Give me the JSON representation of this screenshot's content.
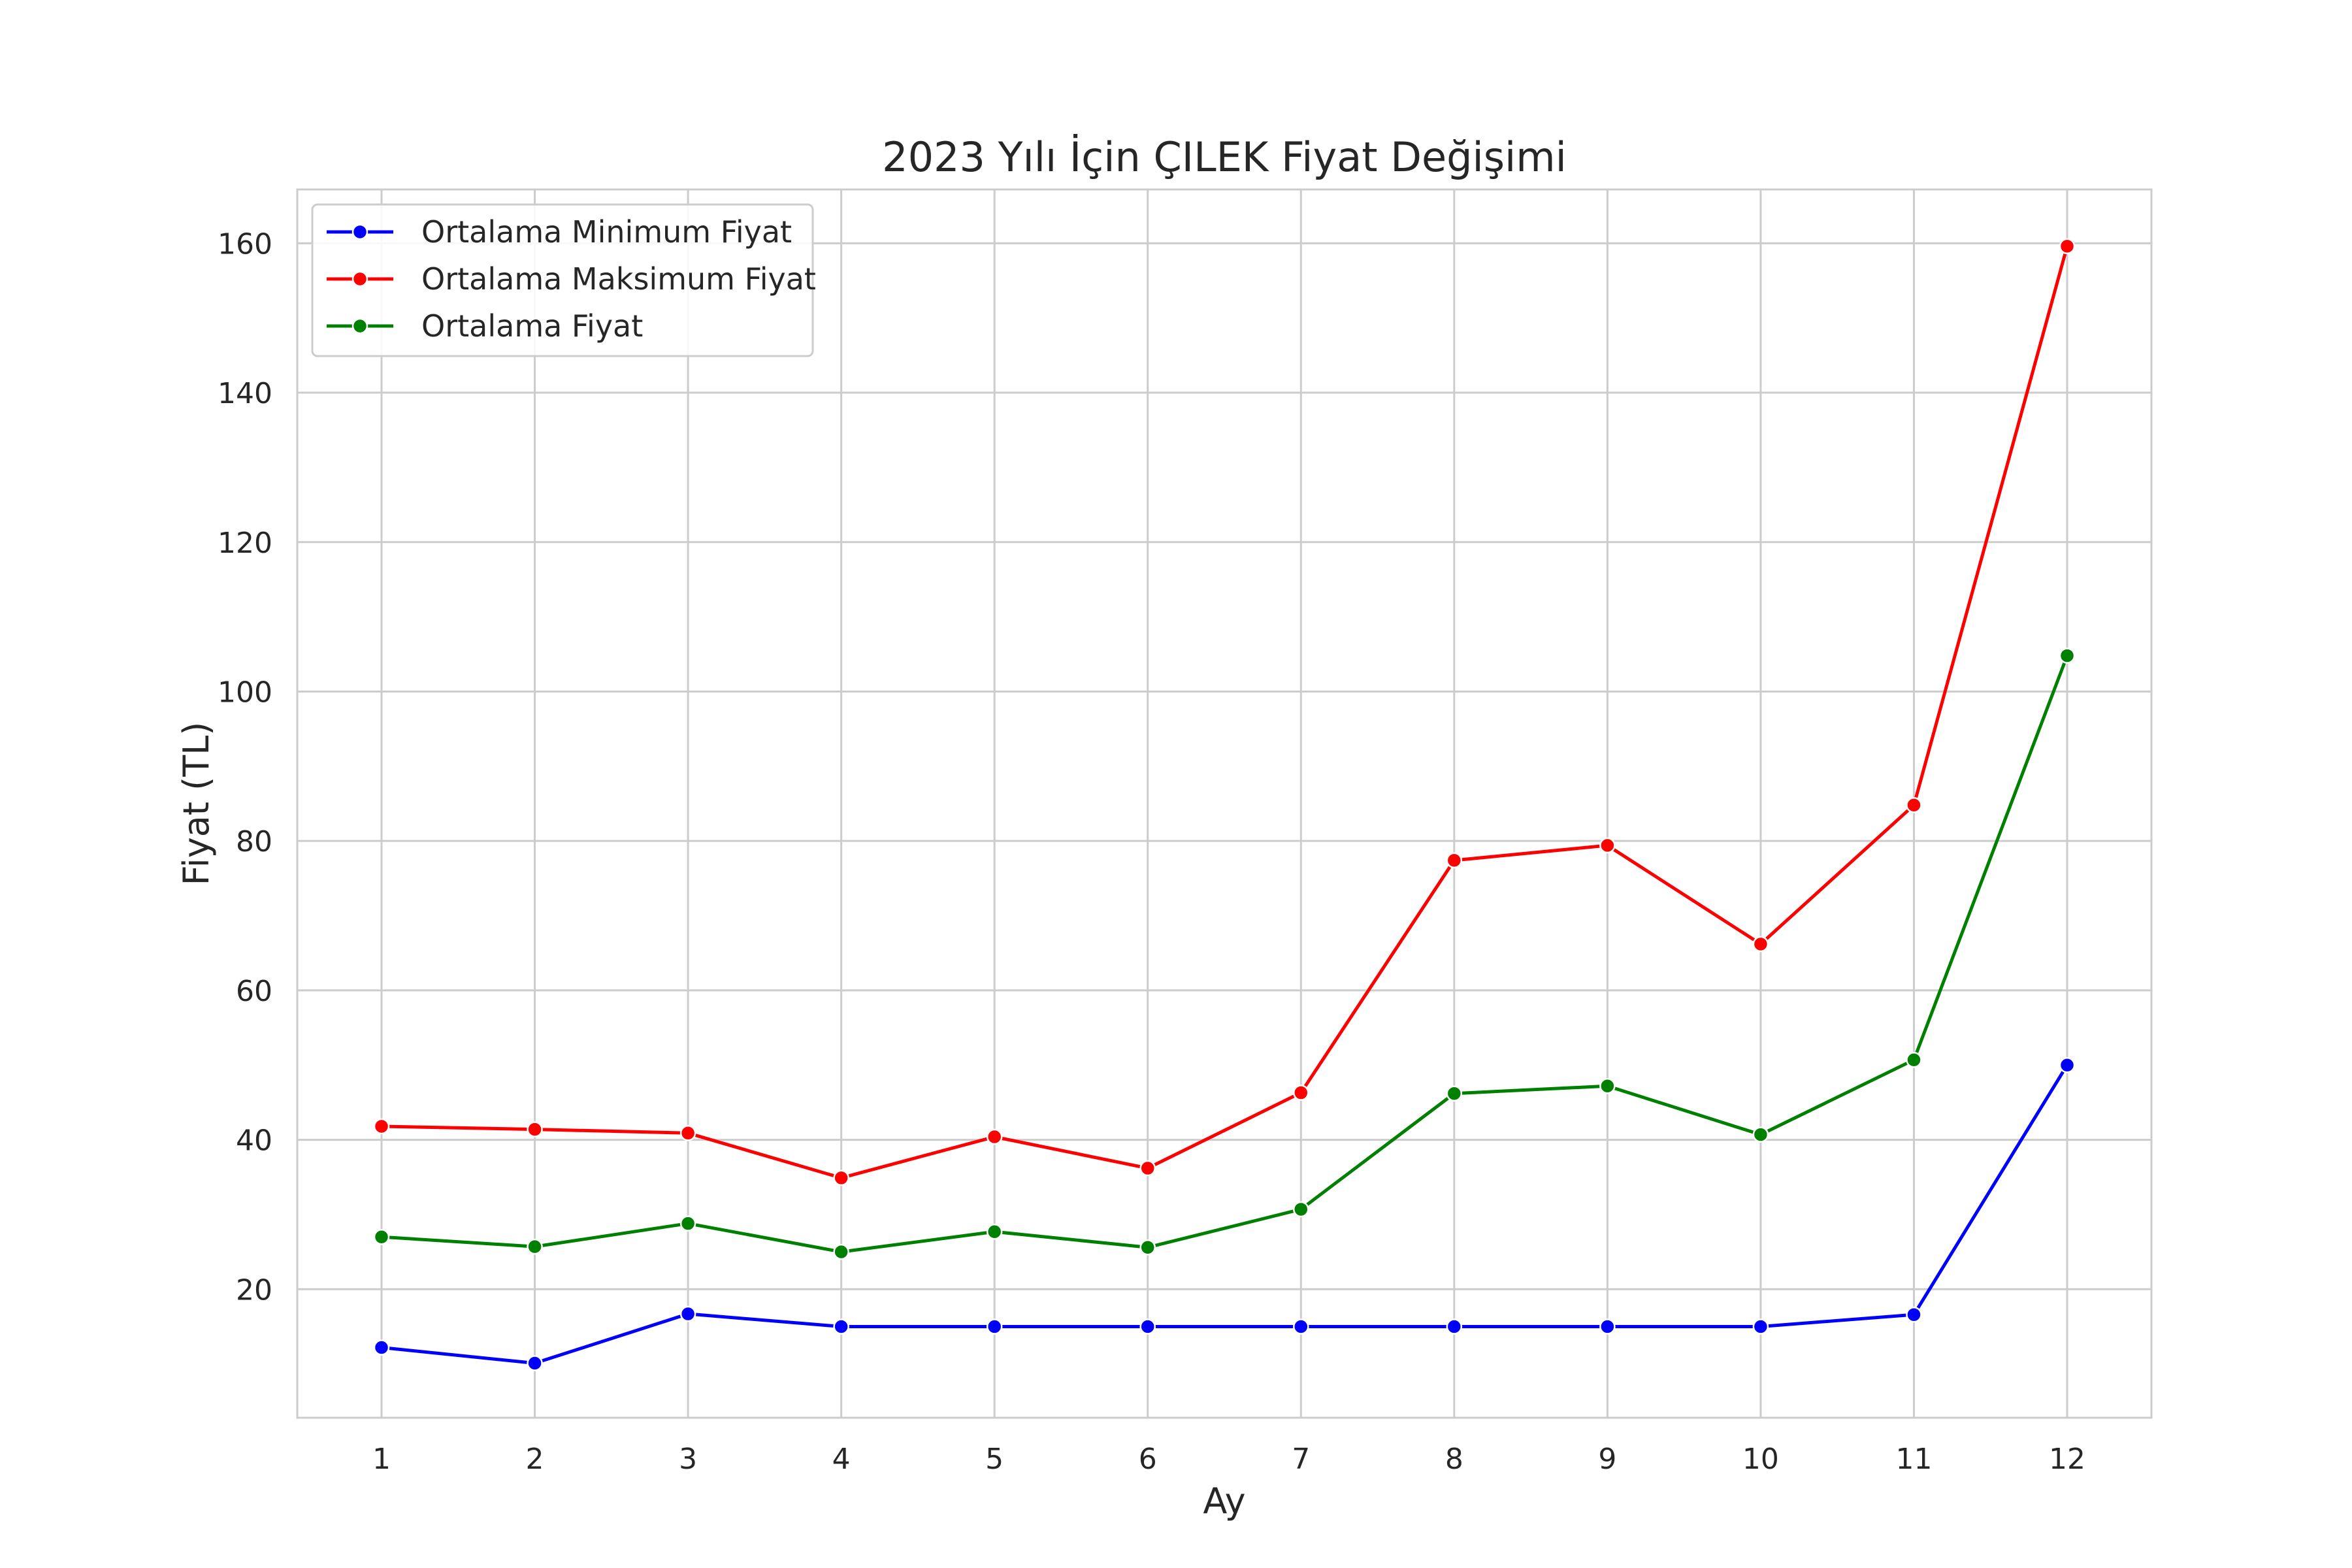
{
  "chart_data": {
    "type": "line",
    "title": "2023 Yılı İçin ÇILEK Fiyat Değişimi",
    "xlabel": "Ay",
    "ylabel": "Fiyat (TL)",
    "x": [
      1,
      2,
      3,
      4,
      5,
      6,
      7,
      8,
      9,
      10,
      11,
      12
    ],
    "x_tick_labels": [
      "1",
      "2",
      "3",
      "4",
      "5",
      "6",
      "7",
      "8",
      "9",
      "10",
      "11",
      "12"
    ],
    "xlim": [
      0.45,
      12.55
    ],
    "ylim": [
      2.8,
      167.2
    ],
    "y_ticks": [
      20,
      40,
      60,
      80,
      100,
      120,
      140,
      160
    ],
    "y_tick_labels": [
      "20",
      "40",
      "60",
      "80",
      "100",
      "120",
      "140",
      "160"
    ],
    "grid": true,
    "legend_position": "top-left",
    "series": [
      {
        "name": "Ortalama Minimum Fiyat",
        "color": "#0000ff",
        "values": [
          12.2,
          10.1,
          16.7,
          15.0,
          15.0,
          15.0,
          15.0,
          15.0,
          15.0,
          15.0,
          16.6,
          50.0
        ]
      },
      {
        "name": "Ortalama Maksimum Fiyat",
        "color": "#ff0000",
        "values": [
          41.8,
          41.4,
          40.9,
          34.9,
          40.4,
          36.2,
          46.3,
          77.4,
          79.4,
          66.2,
          84.8,
          159.6
        ]
      },
      {
        "name": "Ortalama Fiyat",
        "color": "#008000",
        "values": [
          27.0,
          25.7,
          28.8,
          25.0,
          27.7,
          25.6,
          30.7,
          46.2,
          47.2,
          40.7,
          50.7,
          104.8
        ]
      }
    ]
  }
}
